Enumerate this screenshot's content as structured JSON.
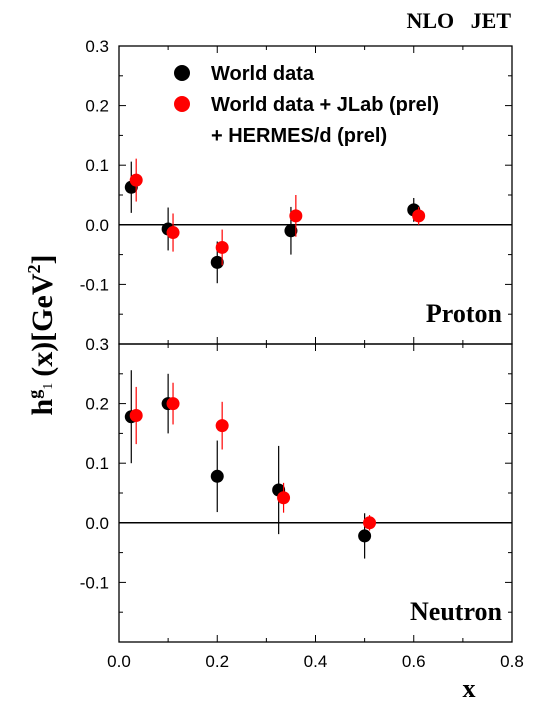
{
  "header": {
    "label": "NLO   JET"
  },
  "ylabel": {
    "h": "h",
    "sup_g": "g",
    "sub_1": "1",
    "rest": "(x)[GeV",
    "exp": "2",
    "close": "]"
  },
  "xlabel": "x",
  "legend": {
    "entries": [
      "World data",
      "World data + JLab (prel)",
      "+ HERMES/d (prel)"
    ],
    "colors": [
      "#000000",
      "#ff0000"
    ]
  },
  "chart_data": [
    {
      "type": "scatter",
      "panel_label": "Proton",
      "xlim": [
        0,
        0.8
      ],
      "ylim": [
        -0.2,
        0.3
      ],
      "xticks": [
        "0.0",
        "0.2",
        "0.4",
        "0.6",
        "0.8"
      ],
      "yticks": [
        "-0.1",
        "0.0",
        "0.1",
        "0.2",
        "0.3"
      ],
      "zero_line": true,
      "series": [
        {
          "name": "World data",
          "color": "#000000",
          "points": [
            {
              "x": 0.025,
              "y": 0.063,
              "err": 0.043
            },
            {
              "x": 0.1,
              "y": -0.007,
              "err": 0.036
            },
            {
              "x": 0.2,
              "y": -0.063,
              "err": 0.035
            },
            {
              "x": 0.35,
              "y": -0.01,
              "err": 0.04
            },
            {
              "x": 0.6,
              "y": 0.025,
              "err": 0.02
            }
          ]
        },
        {
          "name": "World data + JLab (prel) + HERMES/d (prel)",
          "color": "#ff0000",
          "points": [
            {
              "x": 0.035,
              "y": 0.075,
              "err": 0.036
            },
            {
              "x": 0.11,
              "y": -0.013,
              "err": 0.032
            },
            {
              "x": 0.21,
              "y": -0.038,
              "err": 0.03
            },
            {
              "x": 0.36,
              "y": 0.015,
              "err": 0.035
            },
            {
              "x": 0.61,
              "y": 0.015,
              "err": 0.015
            }
          ]
        }
      ]
    },
    {
      "type": "scatter",
      "panel_label": "Neutron",
      "xlim": [
        0,
        0.8
      ],
      "ylim": [
        -0.2,
        0.3
      ],
      "xticks": [
        "0.0",
        "0.2",
        "0.4",
        "0.6",
        "0.8"
      ],
      "yticks": [
        "-0.1",
        "0.0",
        "0.1",
        "0.2",
        "0.3"
      ],
      "zero_line": true,
      "series": [
        {
          "name": "World data",
          "color": "#000000",
          "points": [
            {
              "x": 0.025,
              "y": 0.178,
              "err": 0.078
            },
            {
              "x": 0.1,
              "y": 0.2,
              "err": 0.05
            },
            {
              "x": 0.2,
              "y": 0.078,
              "err": 0.06
            },
            {
              "x": 0.325,
              "y": 0.055,
              "err": 0.074
            },
            {
              "x": 0.5,
              "y": -0.022,
              "err": 0.038
            }
          ]
        },
        {
          "name": "World data + JLab (prel) + HERMES/d (prel)",
          "color": "#ff0000",
          "points": [
            {
              "x": 0.035,
              "y": 0.18,
              "err": 0.048
            },
            {
              "x": 0.11,
              "y": 0.2,
              "err": 0.035
            },
            {
              "x": 0.21,
              "y": 0.163,
              "err": 0.04
            },
            {
              "x": 0.335,
              "y": 0.042,
              "err": 0.025
            },
            {
              "x": 0.51,
              "y": 0.0,
              "err": 0.013
            }
          ]
        }
      ]
    }
  ]
}
